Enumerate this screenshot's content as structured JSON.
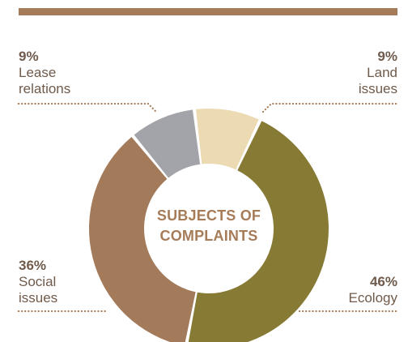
{
  "colors": {
    "top_bar": "#a57c59",
    "label_text": "#6f5a4b",
    "center_text": "#a67c58",
    "leader_line": "#a47c58"
  },
  "center_title": {
    "line1": "SUBJECTS OF",
    "line2": "COMPLAINTS"
  },
  "chart_data": {
    "type": "pie",
    "variant": "donut",
    "categories": [
      "Ecology",
      "Social issues",
      "Lease relations",
      "Land issues"
    ],
    "values": [
      46,
      36,
      9,
      9
    ],
    "colors": [
      "#877a34",
      "#a37a5a",
      "#a3a4aa",
      "#ecdab3"
    ],
    "data_labels": [
      {
        "category": "Ecology",
        "pct_text": "46%",
        "name_lines": [
          "Ecology"
        ],
        "side": "right"
      },
      {
        "category": "Social issues",
        "pct_text": "36%",
        "name_lines": [
          "Social",
          "issues"
        ],
        "side": "left"
      },
      {
        "category": "Lease relations",
        "pct_text": "9%",
        "name_lines": [
          "Lease",
          "relations"
        ],
        "side": "left"
      },
      {
        "category": "Land issues",
        "pct_text": "9%",
        "name_lines": [
          "Land",
          "issues"
        ],
        "side": "right"
      }
    ],
    "title": "SUBJECTS OF COMPLAINTS",
    "legend": "none"
  }
}
